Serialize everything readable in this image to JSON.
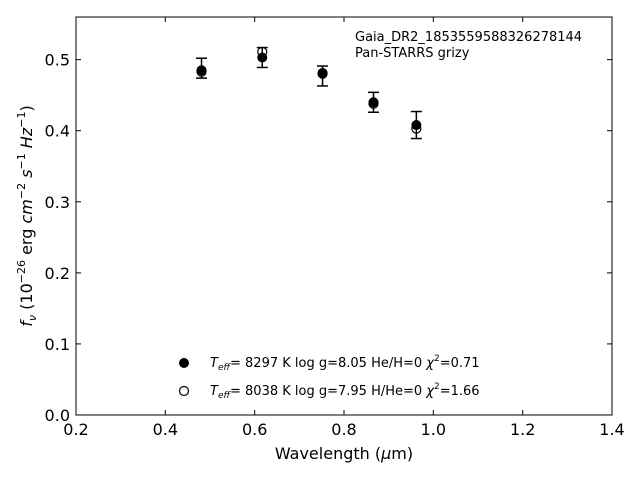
{
  "chart_data": {
    "type": "scatter",
    "annotation": [
      "Gaia_DR2_1853559588326278144",
      "Pan-STARRS grizy"
    ],
    "xlabel": {
      "pre": "Wavelength (",
      "greek": "μ",
      "post": "m)"
    },
    "ylabel": {
      "f": "f",
      "nu": "ν",
      "p1": " (10",
      "e26": "−26",
      "p2": " erg ",
      "cm": "cm",
      "e2": "−2",
      "s": " s",
      "e1a": "−1",
      "hz": " Hz",
      "e1b": "−1",
      "close": ")"
    },
    "xlim": [
      0.2,
      1.4
    ],
    "ylim": [
      0.0,
      0.56
    ],
    "xticks": [
      0.2,
      0.4,
      0.6,
      0.8,
      1.0,
      1.2,
      1.4
    ],
    "yticks": [
      0.0,
      0.1,
      0.2,
      0.3,
      0.4,
      0.5
    ],
    "xtick_labels": [
      "0.2",
      "0.4",
      "0.6",
      "0.8",
      "1.0",
      "1.2",
      "1.4"
    ],
    "ytick_labels": [
      "0.0",
      "0.1",
      "0.2",
      "0.3",
      "0.4",
      "0.5"
    ],
    "grid": false,
    "observed": {
      "marker": "filled-circle",
      "x": [
        0.481,
        0.617,
        0.752,
        0.866,
        0.962
      ],
      "y": [
        0.488,
        0.503,
        0.477,
        0.44,
        0.408
      ],
      "yerr": [
        0.014,
        0.014,
        0.014,
        0.014,
        0.019
      ]
    },
    "series": [
      {
        "marker": "filled-circle",
        "x": [
          0.481,
          0.617,
          0.752,
          0.866,
          0.962
        ],
        "y": [
          0.485,
          0.503,
          0.48,
          0.44,
          0.408
        ],
        "legend": {
          "teff_label": "eff",
          "text1": "=  8297 K  log g=8.05  He/H=0  ",
          "chi_label": "2",
          "text2": "=0.71"
        }
      },
      {
        "marker": "open-circle",
        "x": [
          0.481,
          0.617,
          0.752,
          0.866,
          0.962
        ],
        "y": [
          0.483,
          0.511,
          0.481,
          0.438,
          0.403
        ],
        "legend": {
          "teff_label": "eff",
          "text1": "=  8038 K  log g=7.95  H/He=0  ",
          "chi_label": "2",
          "text2": "=1.66"
        }
      }
    ],
    "legend_placement": "lower-center"
  }
}
